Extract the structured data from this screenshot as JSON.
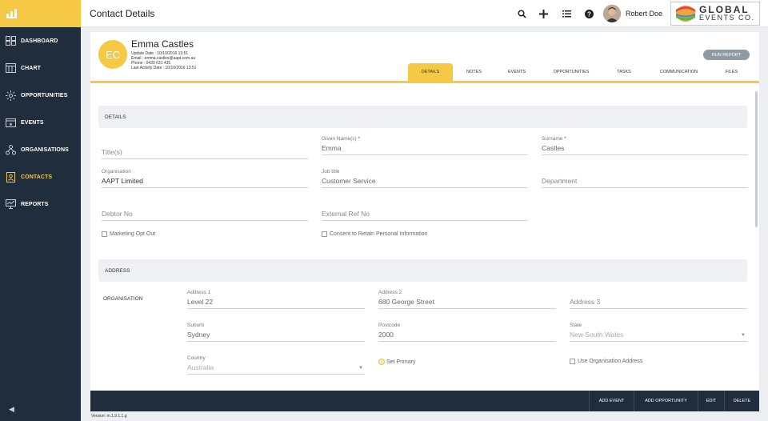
{
  "sidebar": {
    "items": [
      {
        "label": "DASHBOARD",
        "icon": "dashboard-icon"
      },
      {
        "label": "CHART",
        "icon": "chart-icon"
      },
      {
        "label": "OPPORTUNITIES",
        "icon": "opportunities-icon"
      },
      {
        "label": "EVENTS",
        "icon": "events-icon"
      },
      {
        "label": "ORGANISATIONS",
        "icon": "organisations-icon"
      },
      {
        "label": "CONTACTS",
        "icon": "contacts-icon",
        "active": true
      },
      {
        "label": "REPORTS",
        "icon": "reports-icon"
      }
    ]
  },
  "topbar": {
    "title": "Contact Details",
    "user_name": "Robert Doe",
    "brand_line1": "GLOBAL",
    "brand_line2": "EVENTS CO."
  },
  "profile": {
    "initials": "EC",
    "name": "Emma Castles",
    "update_date": "Update Date : 10/10/2016 13:51",
    "email": "Email : emma.castles@aapt.com.au",
    "phone": "Phone : 0439 631 435",
    "last_activity": "Last Activity Date : 10/10/2016 13:51",
    "run_report": "RUN REPORT"
  },
  "tabs": [
    "DETAILS",
    "NOTES",
    "EVENTS",
    "OPPORTUNITIES",
    "TASKS",
    "COMMUNICATION",
    "FILES"
  ],
  "details": {
    "heading": "DETAILS",
    "title_placeholder": "Title(s)",
    "given_label": "Given Name(s)",
    "given_value": "Emma",
    "surname_label": "Surname",
    "surname_value": "Castles",
    "org_label": "Organisation",
    "org_value": "AAPT Limited",
    "job_label": "Job title",
    "job_value": "Customer Service",
    "department_placeholder": "Department",
    "debtor_placeholder": "Debtor No",
    "extref_placeholder": "External Ref No",
    "marketing_label": "Marketing Opt Out",
    "consent_label": "Consent to Retain Personal Information",
    "required_mark": "*"
  },
  "address": {
    "heading": "ADDRESS",
    "row_label": "ORGANISATION",
    "address1_label": "Address 1",
    "address1_value": "Level 22",
    "address2_label": "Address 2",
    "address2_value": "680 George Street",
    "address3_placeholder": "Address 3",
    "suburb_label": "Suburb",
    "suburb_value": "Sydney",
    "postcode_label": "Postcode",
    "postcode_value": "2000",
    "state_label": "State",
    "state_value": "New South Wales",
    "country_label": "Country",
    "country_value": "Australia",
    "set_primary": "Set Primary",
    "use_org_address": "Use Organisation Address"
  },
  "actions": [
    "ADD EVENT",
    "ADD OPPORTUNITY",
    "EDIT",
    "DELETE"
  ],
  "version": "Version: m.1.9.1.1.g",
  "colors": {
    "accent": "#f6c945",
    "sidebar": "#1f2d3d"
  }
}
